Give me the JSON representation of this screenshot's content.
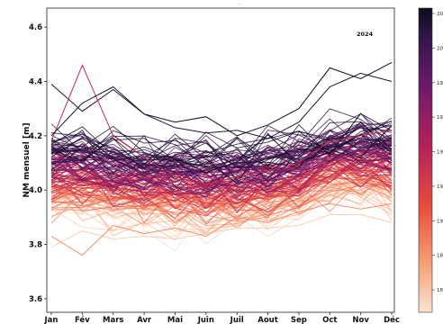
{
  "chart_data": {
    "type": "line",
    "title": "",
    "xlabel": "",
    "ylabel": "NM mensuel [m]",
    "categories": [
      "Jan",
      "Fév",
      "Mars",
      "Avr",
      "Mai",
      "Juin",
      "Juil",
      "Aout",
      "Sep",
      "Oct",
      "Nov",
      "Déc"
    ],
    "ylim": [
      3.55,
      4.67
    ],
    "yticks": [
      "3.6",
      "3.8",
      "4.0",
      "4.2",
      "4.4",
      "4.6"
    ],
    "annotation": "2024",
    "series_count": 150,
    "envelope": {
      "upper": [
        4.39,
        4.46,
        4.38,
        4.3,
        4.28,
        4.27,
        4.24,
        4.26,
        4.3,
        4.45,
        4.43,
        4.47
      ],
      "lower": [
        3.79,
        3.76,
        3.81,
        3.81,
        3.82,
        3.83,
        3.85,
        3.85,
        3.87,
        3.9,
        3.9,
        3.87
      ],
      "central": [
        4.06,
        4.05,
        4.04,
        4.02,
        4.01,
        4.01,
        4.02,
        4.03,
        4.06,
        4.1,
        4.11,
        4.1
      ]
    },
    "highlight_series": [
      {
        "values": [
          4.39,
          4.29,
          4.37,
          4.28,
          4.23,
          4.21,
          4.22,
          4.19,
          4.25,
          4.38,
          4.43,
          4.4
        ]
      },
      {
        "values": [
          4.18,
          4.46,
          4.2,
          4.12,
          4.05,
          4.02,
          4.05,
          4.07,
          4.1,
          4.18,
          4.2,
          4.22
        ]
      },
      {
        "values": [
          3.79,
          3.85,
          3.82,
          3.83,
          3.82,
          3.84,
          3.86,
          3.86,
          3.87,
          3.91,
          3.91,
          3.88
        ]
      },
      {
        "values": [
          3.83,
          3.76,
          3.87,
          3.84,
          3.86,
          3.83,
          3.9,
          3.88,
          3.92,
          3.95,
          3.93,
          3.95
        ]
      },
      {
        "values": [
          4.2,
          4.32,
          4.38,
          4.28,
          4.25,
          4.27,
          4.2,
          4.24,
          4.3,
          4.45,
          4.41,
          4.47
        ]
      }
    ],
    "colorbar": {
      "colormap": "rocket (reversed: light = old, dark = recent)",
      "color_low": "#fbe3d0",
      "color_high": "#0f0b20",
      "tick_labels": [
        "20",
        "20",
        "19",
        "19",
        "19",
        "19",
        "19",
        "18",
        "18"
      ]
    }
  }
}
